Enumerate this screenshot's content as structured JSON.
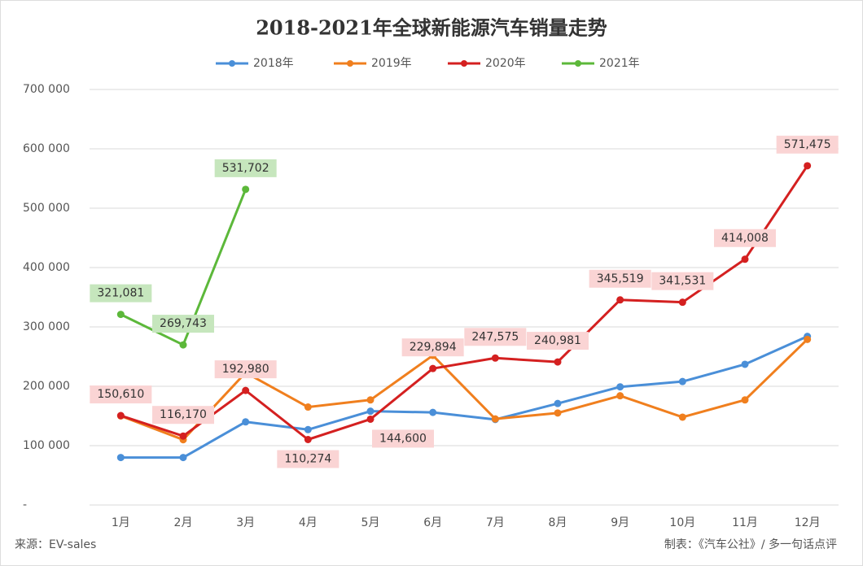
{
  "chart_data": {
    "type": "line",
    "title": "2018-2021年全球新能源汽车销量走势",
    "categories": [
      "1月",
      "2月",
      "3月",
      "4月",
      "5月",
      "6月",
      "7月",
      "8月",
      "9月",
      "10月",
      "11月",
      "12月"
    ],
    "series": [
      {
        "name": "2018年",
        "color": "#4a8fd8",
        "values": [
          80000,
          80000,
          140000,
          127000,
          158000,
          156000,
          144000,
          171000,
          199000,
          208000,
          237000,
          284000
        ]
      },
      {
        "name": "2019年",
        "color": "#f07f1e",
        "values": [
          150000,
          110000,
          223000,
          165000,
          177000,
          252000,
          145000,
          155000,
          184000,
          148000,
          177000,
          279000
        ]
      },
      {
        "name": "2020年",
        "color": "#d42020",
        "values": [
          150610,
          116170,
          192980,
          110274,
          144600,
          229894,
          247575,
          240981,
          345519,
          341531,
          414008,
          571475
        ],
        "value_labels": [
          "150,610",
          "116,170",
          "192,980",
          "110,274",
          "144,600",
          "229,894",
          "247,575",
          "240,981",
          "345,519",
          "341,531",
          "414,008",
          "571,475"
        ]
      },
      {
        "name": "2021年",
        "color": "#5cb83a",
        "values": [
          321081,
          269743,
          531702,
          null,
          null,
          null,
          null,
          null,
          null,
          null,
          null,
          null
        ],
        "value_labels": [
          "321,081",
          "269,743",
          "531,702",
          null,
          null,
          null,
          null,
          null,
          null,
          null,
          null,
          null
        ]
      }
    ],
    "ylim": [
      0,
      700000
    ],
    "yticks": [
      {
        "value": 0,
        "label": "-"
      },
      {
        "value": 100000,
        "label": "100 000"
      },
      {
        "value": 200000,
        "label": "200 000"
      },
      {
        "value": 300000,
        "label": "300 000"
      },
      {
        "value": 400000,
        "label": "400 000"
      },
      {
        "value": 500000,
        "label": "500 000"
      },
      {
        "value": 600000,
        "label": "600 000"
      },
      {
        "value": 700000,
        "label": "700 000"
      }
    ],
    "grid": true,
    "legend": "top",
    "source": "来源：EV-sales",
    "credit": "制表：《汽车公社》/ 多一句话点评"
  }
}
